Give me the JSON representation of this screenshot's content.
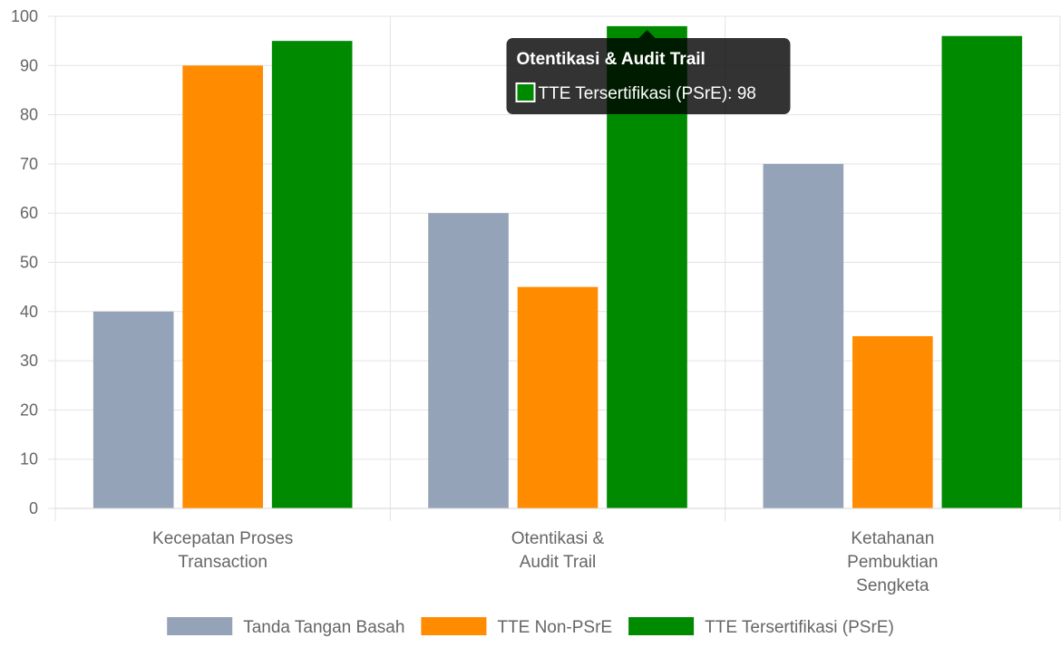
{
  "chart_data": {
    "type": "bar",
    "title": "",
    "xlabel": "",
    "ylabel": "",
    "categories": [
      [
        "Kecepatan Proses",
        "Transaction"
      ],
      [
        "Otentikasi &",
        "Audit Trail"
      ],
      [
        "Ketahanan",
        "Pembuktian",
        "Sengketa"
      ]
    ],
    "series": [
      {
        "name": "Tanda Tangan Basah",
        "color": "#94a3b8",
        "values": [
          40,
          60,
          70
        ]
      },
      {
        "name": "TTE Non-PSrE",
        "color": "#ff8c00",
        "values": [
          90,
          45,
          35
        ]
      },
      {
        "name": "TTE Tersertifikasi (PSrE)",
        "color": "#008a00",
        "values": [
          95,
          98,
          96
        ]
      }
    ],
    "ylim": [
      0,
      100
    ],
    "yticks": [
      0,
      10,
      20,
      30,
      40,
      50,
      60,
      70,
      80,
      90,
      100
    ],
    "grid": true,
    "legend_position": "bottom",
    "tooltip": {
      "title": "Otentikasi & Audit Trail",
      "series_label": "TTE Tersertifikasi (PSrE)",
      "value": 98,
      "category_index": 1,
      "series_index": 2
    }
  }
}
